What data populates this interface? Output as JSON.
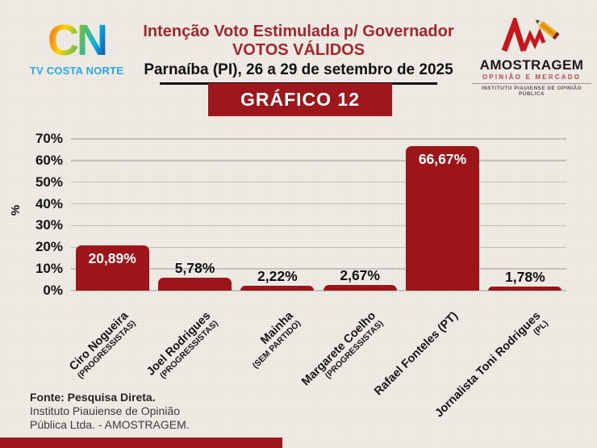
{
  "header": {
    "title_line1": "Intenção Voto Estimulada p/ Governador",
    "title_line2": "VOTOS VÁLIDOS",
    "title_line3": "Parnaíba (PI), 26 a 29 de setembro de 2025"
  },
  "logos": {
    "tv_costa_norte": {
      "mark": "CN",
      "label": "TV COSTA NORTE"
    },
    "amostragem": {
      "name": "AMOSTRAGEM",
      "tagline": "OPINIÃO E MERCADO",
      "subtitle": "INSTITUTO PIAUIENSE DE OPINIÃO PÚBLICA"
    }
  },
  "chart_badge": "GRÁFICO 12",
  "chart_data": {
    "type": "bar",
    "title": "GRÁFICO 12",
    "categories": [
      {
        "name": "Ciro Nogueira",
        "party": "(PROGRESSISTAS)"
      },
      {
        "name": "Joel Rodrigues",
        "party": "(PROGRESSISTAS)"
      },
      {
        "name": "Mainha",
        "party": "(SEM PARTIDO)"
      },
      {
        "name": "Margarete Coelho",
        "party": "(PROGRESSISTAS)"
      },
      {
        "name": "Rafael Fonteles (PT)",
        "party": ""
      },
      {
        "name": "Jornalista Toni Rodrigues",
        "party": "(PL)"
      }
    ],
    "values": [
      20.89,
      5.78,
      2.22,
      2.67,
      66.67,
      1.78
    ],
    "value_labels": [
      "20,89%",
      "5,78%",
      "2,22%",
      "2,67%",
      "66,67%",
      "1,78%"
    ],
    "xlabel": "",
    "ylabel": "%",
    "ylim": [
      0,
      70
    ],
    "ytick_step": 10,
    "yticks": [
      "0%",
      "10%",
      "20%",
      "30%",
      "40%",
      "50%",
      "60%",
      "70%"
    ],
    "grid": true,
    "legend": false,
    "bar_color": "#9e1519",
    "label_inside_threshold": 10
  },
  "footer": {
    "line1": "Fonte: Pesquisa Direta.",
    "line2": "Instituto Piauiense de Opinião",
    "line3": "Pública Ltda. - AMOSTRAGEM."
  },
  "colors": {
    "accent_red": "#9e171c",
    "header_red": "#a4272b",
    "logo_blue": "#29a7e1"
  }
}
